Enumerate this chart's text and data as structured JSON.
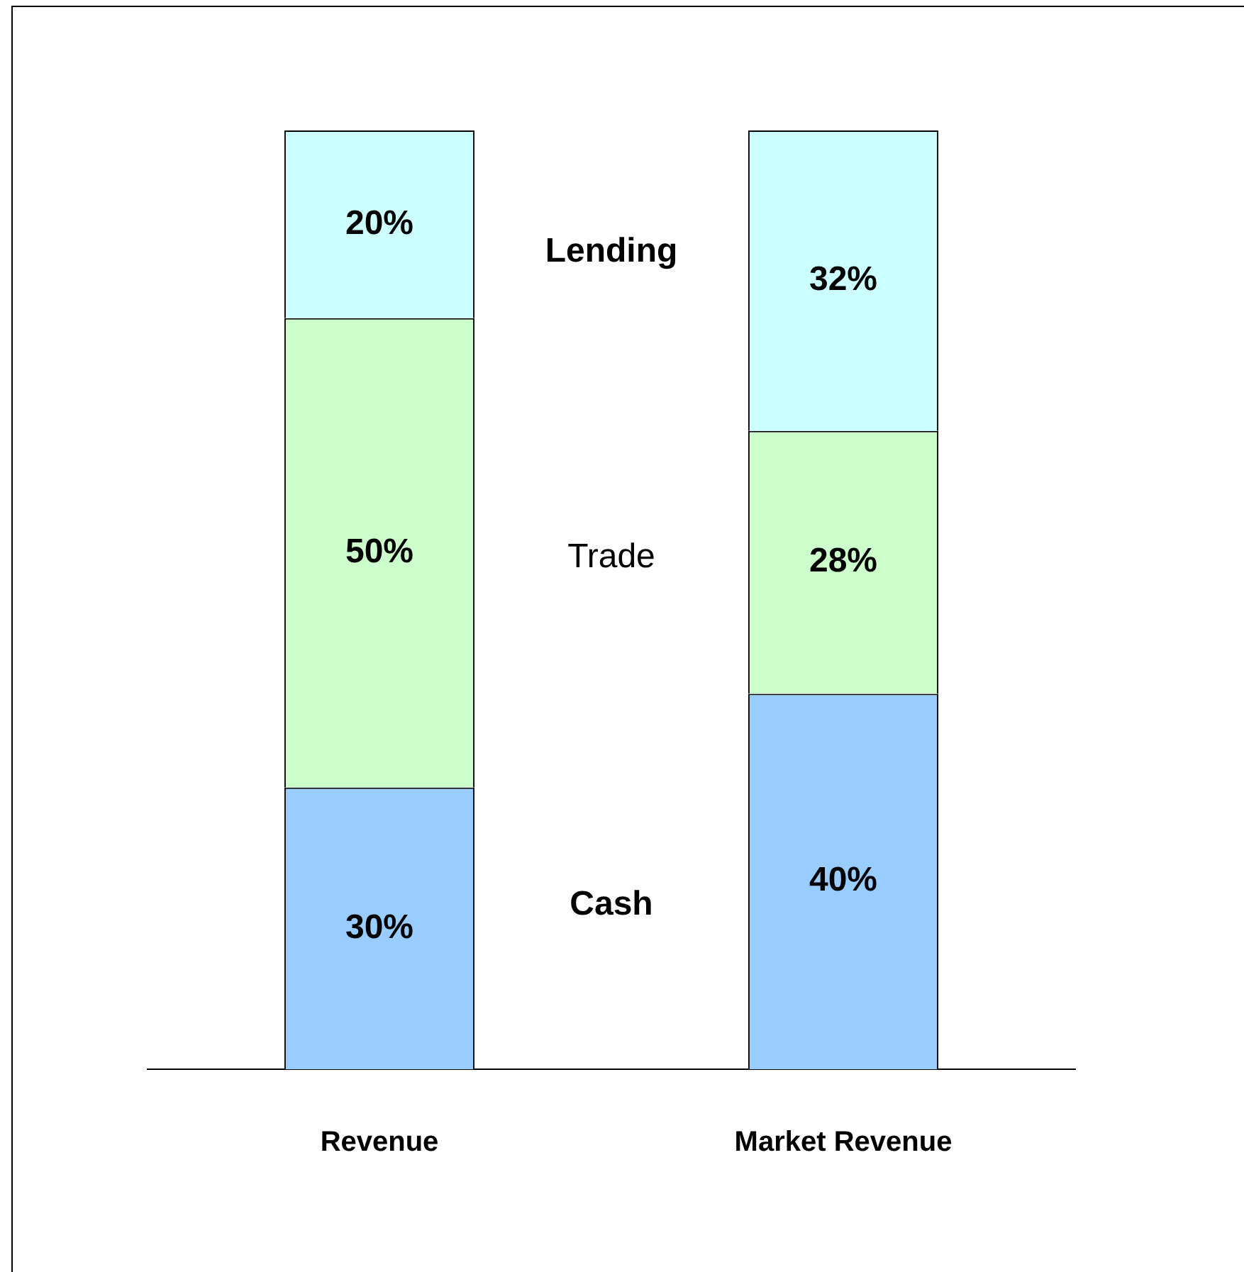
{
  "chart_data": {
    "type": "bar",
    "stacked": true,
    "categories": [
      "Revenue",
      "Market Revenue"
    ],
    "series": [
      {
        "name": "Cash",
        "color": "#99ccff",
        "values": [
          30,
          40
        ],
        "value_labels": [
          "30%",
          "40%"
        ]
      },
      {
        "name": "Trade",
        "color": "#ccffcc",
        "values": [
          50,
          28
        ],
        "value_labels": [
          "50%",
          "28%"
        ]
      },
      {
        "name": "Lending",
        "color": "#ccffff",
        "values": [
          20,
          32
        ],
        "value_labels": [
          "20%",
          "32%"
        ]
      }
    ],
    "tick_labels": "x",
    "grid": false
  }
}
